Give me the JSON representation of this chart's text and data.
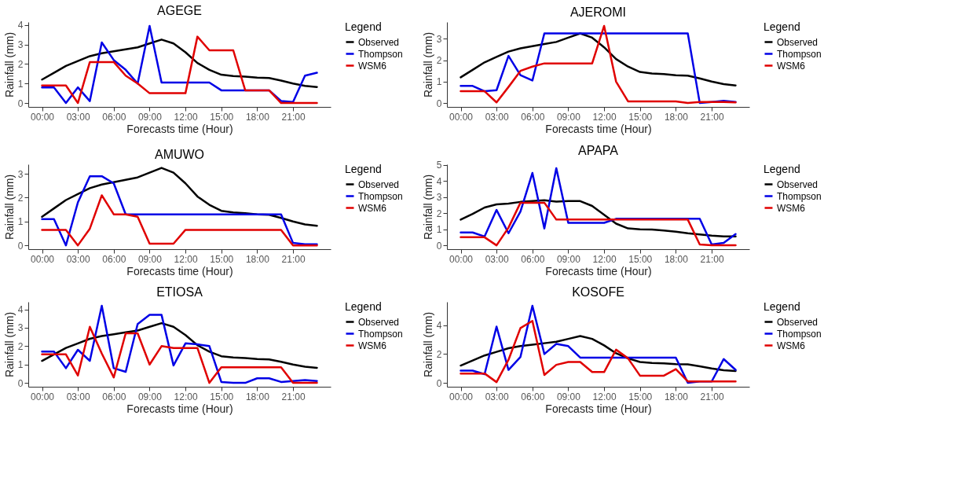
{
  "chart_data": [
    {
      "type": "line",
      "title": "AGEGE",
      "xlabel": "Forecasts time (Hour)",
      "ylabel": "Rainfall (mm)",
      "legend_title": "Legend",
      "legend": "right",
      "grid": false,
      "line_style": "solid",
      "x": [
        0,
        1,
        2,
        3,
        4,
        5,
        6,
        7,
        8,
        9,
        10,
        11,
        12,
        13,
        14,
        15,
        16,
        17,
        18,
        19,
        20,
        21,
        22,
        23
      ],
      "xlim": [
        -1.15,
        24.15
      ],
      "xticks": [
        {
          "value": 0,
          "label": "00:00"
        },
        {
          "value": 3,
          "label": "03:00"
        },
        {
          "value": 6,
          "label": "06:00"
        },
        {
          "value": 9,
          "label": "09:00"
        },
        {
          "value": 12,
          "label": "12:00"
        },
        {
          "value": 15,
          "label": "15:00"
        },
        {
          "value": 18,
          "label": "18:00"
        },
        {
          "value": 21,
          "label": "21:00"
        }
      ],
      "ylim": [
        -0.2,
        4.15
      ],
      "yticks": [
        0,
        1,
        2,
        3,
        4
      ],
      "series": [
        {
          "name": "Observed",
          "color": "#000000",
          "values": [
            1.2,
            1.55,
            1.9,
            2.15,
            2.4,
            2.55,
            2.65,
            2.75,
            2.85,
            3.05,
            3.25,
            3.05,
            2.6,
            2.05,
            1.7,
            1.45,
            1.38,
            1.35,
            1.3,
            1.28,
            1.15,
            1.0,
            0.88,
            0.82
          ]
        },
        {
          "name": "Thompson",
          "color": "#0000e6",
          "values": [
            0.8,
            0.8,
            0,
            0.8,
            0.1,
            3.1,
            2.2,
            1.7,
            1.0,
            3.95,
            1.05,
            1.05,
            1.05,
            1.05,
            1.05,
            0.65,
            0.65,
            0.65,
            0.65,
            0.65,
            0.1,
            0.05,
            1.4,
            1.55
          ]
        },
        {
          "name": "WSM6",
          "color": "#e00000",
          "values": [
            0.9,
            0.9,
            0.9,
            0,
            2.1,
            2.1,
            2.1,
            1.4,
            1.0,
            0.5,
            0.5,
            0.5,
            0.5,
            3.4,
            2.7,
            2.7,
            2.7,
            0.65,
            0.65,
            0.65,
            0,
            0,
            0,
            0
          ]
        }
      ]
    },
    {
      "type": "line",
      "title": "AJEROMI",
      "xlabel": "Forecasts time (Hour)",
      "ylabel": "Rainfall (mm)",
      "legend_title": "Legend",
      "legend": "right",
      "grid": false,
      "line_style": "solid",
      "x": [
        0,
        1,
        2,
        3,
        4,
        5,
        6,
        7,
        8,
        9,
        10,
        11,
        12,
        13,
        14,
        15,
        16,
        17,
        18,
        19,
        20,
        21,
        22,
        23
      ],
      "xlim": [
        -1.15,
        24.15
      ],
      "xticks": [
        {
          "value": 0,
          "label": "00:00"
        },
        {
          "value": 3,
          "label": "03:00"
        },
        {
          "value": 6,
          "label": "06:00"
        },
        {
          "value": 9,
          "label": "09:00"
        },
        {
          "value": 12,
          "label": "12:00"
        },
        {
          "value": 15,
          "label": "15:00"
        },
        {
          "value": 18,
          "label": "18:00"
        },
        {
          "value": 21,
          "label": "21:00"
        }
      ],
      "ylim": [
        -0.18,
        3.78
      ],
      "yticks": [
        0,
        1,
        2,
        3
      ],
      "series": [
        {
          "name": "Observed",
          "color": "#000000",
          "values": [
            1.2,
            1.55,
            1.9,
            2.15,
            2.4,
            2.55,
            2.65,
            2.75,
            2.85,
            3.05,
            3.25,
            3.05,
            2.6,
            2.05,
            1.7,
            1.45,
            1.38,
            1.35,
            1.3,
            1.28,
            1.15,
            1.0,
            0.88,
            0.82
          ]
        },
        {
          "name": "Thompson",
          "color": "#0000e6",
          "values": [
            0.8,
            0.8,
            0.55,
            0.6,
            2.2,
            1.3,
            1.05,
            3.25,
            3.25,
            3.25,
            3.25,
            3.25,
            3.25,
            3.25,
            3.25,
            3.25,
            3.25,
            3.25,
            3.25,
            3.25,
            0,
            0.05,
            0.1,
            0.05
          ]
        },
        {
          "name": "WSM6",
          "color": "#e00000",
          "values": [
            0.55,
            0.55,
            0.55,
            0.03,
            0.75,
            1.5,
            1.7,
            1.85,
            1.85,
            1.85,
            1.85,
            1.85,
            3.6,
            1.0,
            0.08,
            0.08,
            0.08,
            0.08,
            0.08,
            0,
            0.05,
            0.05,
            0.05,
            0.03
          ]
        }
      ]
    },
    {
      "type": "line",
      "title": "AMUWO",
      "xlabel": "Forecasts time (Hour)",
      "ylabel": "Rainfall (mm)",
      "legend_title": "Legend",
      "legend": "right",
      "grid": false,
      "line_style": "solid",
      "x": [
        0,
        1,
        2,
        3,
        4,
        5,
        6,
        7,
        8,
        9,
        10,
        11,
        12,
        13,
        14,
        15,
        16,
        17,
        18,
        19,
        20,
        21,
        22,
        23
      ],
      "xlim": [
        -1.15,
        24.15
      ],
      "xticks": [
        {
          "value": 0,
          "label": "00:00"
        },
        {
          "value": 3,
          "label": "03:00"
        },
        {
          "value": 6,
          "label": "06:00"
        },
        {
          "value": 9,
          "label": "09:00"
        },
        {
          "value": 12,
          "label": "12:00"
        },
        {
          "value": 15,
          "label": "15:00"
        },
        {
          "value": 18,
          "label": "18:00"
        },
        {
          "value": 21,
          "label": "21:00"
        }
      ],
      "ylim": [
        -0.16,
        3.4
      ],
      "yticks": [
        0,
        1,
        2,
        3
      ],
      "series": [
        {
          "name": "Observed",
          "color": "#000000",
          "values": [
            1.2,
            1.55,
            1.9,
            2.15,
            2.4,
            2.55,
            2.65,
            2.75,
            2.85,
            3.05,
            3.25,
            3.05,
            2.6,
            2.05,
            1.7,
            1.45,
            1.38,
            1.35,
            1.3,
            1.28,
            1.15,
            1.0,
            0.88,
            0.82
          ]
        },
        {
          "name": "Thompson",
          "color": "#0000e6",
          "values": [
            1.1,
            1.1,
            0,
            1.8,
            2.9,
            2.9,
            2.6,
            1.3,
            1.3,
            1.3,
            1.3,
            1.3,
            1.3,
            1.3,
            1.3,
            1.3,
            1.3,
            1.3,
            1.3,
            1.3,
            1.3,
            0.1,
            0.05,
            0.05
          ]
        },
        {
          "name": "WSM6",
          "color": "#e00000",
          "values": [
            0.65,
            0.65,
            0.65,
            0,
            0.7,
            2.1,
            1.3,
            1.3,
            1.2,
            0.07,
            0.07,
            0.07,
            0.65,
            0.65,
            0.65,
            0.65,
            0.65,
            0.65,
            0.65,
            0.65,
            0.65,
            0,
            0,
            0
          ]
        }
      ]
    },
    {
      "type": "line",
      "title": "APAPA",
      "xlabel": "Forecasts time (Hour)",
      "ylabel": "Rainfall (mm)",
      "legend_title": "Legend",
      "legend": "right",
      "grid": false,
      "line_style": "solid",
      "x": [
        0,
        1,
        2,
        3,
        4,
        5,
        6,
        7,
        8,
        9,
        10,
        11,
        12,
        13,
        14,
        15,
        16,
        17,
        18,
        19,
        20,
        21,
        22,
        23
      ],
      "xlim": [
        -1.15,
        24.15
      ],
      "xticks": [
        {
          "value": 0,
          "label": "00:00"
        },
        {
          "value": 3,
          "label": "03:00"
        },
        {
          "value": 6,
          "label": "06:00"
        },
        {
          "value": 9,
          "label": "09:00"
        },
        {
          "value": 12,
          "label": "12:00"
        },
        {
          "value": 15,
          "label": "15:00"
        },
        {
          "value": 18,
          "label": "18:00"
        },
        {
          "value": 21,
          "label": "21:00"
        }
      ],
      "ylim": [
        -0.24,
        5.04
      ],
      "yticks": [
        0,
        1,
        2,
        3,
        4,
        5
      ],
      "series": [
        {
          "name": "Observed",
          "color": "#000000",
          "values": [
            1.6,
            1.95,
            2.35,
            2.55,
            2.6,
            2.7,
            2.75,
            2.8,
            2.72,
            2.75,
            2.75,
            2.45,
            1.9,
            1.35,
            1.05,
            1.0,
            0.98,
            0.92,
            0.85,
            0.75,
            0.68,
            0.6,
            0.55,
            0.55
          ]
        },
        {
          "name": "Thompson",
          "color": "#0000e6",
          "values": [
            0.8,
            0.8,
            0.55,
            2.2,
            0.75,
            2.1,
            4.5,
            1.05,
            4.8,
            1.4,
            1.4,
            1.4,
            1.4,
            1.65,
            1.65,
            1.65,
            1.65,
            1.65,
            1.65,
            1.65,
            1.65,
            0.05,
            0.15,
            0.7
          ]
        },
        {
          "name": "WSM6",
          "color": "#e00000",
          "values": [
            0.5,
            0.5,
            0.5,
            0,
            1.1,
            2.65,
            2.65,
            2.65,
            1.6,
            1.6,
            1.6,
            1.6,
            1.6,
            1.6,
            1.6,
            1.6,
            1.6,
            1.6,
            1.6,
            1.6,
            0.05,
            0,
            0,
            0
          ]
        }
      ]
    },
    {
      "type": "line",
      "title": "ETIOSA",
      "xlabel": "Forecasts time (Hour)",
      "ylabel": "Rainfall (mm)",
      "legend_title": "Legend",
      "legend": "right",
      "grid": false,
      "line_style": "solid",
      "x": [
        0,
        1,
        2,
        3,
        4,
        5,
        6,
        7,
        8,
        9,
        10,
        11,
        12,
        13,
        14,
        15,
        16,
        17,
        18,
        19,
        20,
        21,
        22,
        23
      ],
      "xlim": [
        -1.15,
        24.15
      ],
      "xticks": [
        {
          "value": 0,
          "label": "00:00"
        },
        {
          "value": 3,
          "label": "03:00"
        },
        {
          "value": 6,
          "label": "06:00"
        },
        {
          "value": 9,
          "label": "09:00"
        },
        {
          "value": 12,
          "label": "12:00"
        },
        {
          "value": 15,
          "label": "15:00"
        },
        {
          "value": 18,
          "label": "18:00"
        },
        {
          "value": 21,
          "label": "21:00"
        }
      ],
      "ylim": [
        -0.21,
        4.41
      ],
      "yticks": [
        0,
        1,
        2,
        3,
        4
      ],
      "series": [
        {
          "name": "Observed",
          "color": "#000000",
          "values": [
            1.2,
            1.55,
            1.9,
            2.15,
            2.4,
            2.55,
            2.65,
            2.75,
            2.85,
            3.05,
            3.25,
            3.05,
            2.6,
            2.05,
            1.7,
            1.45,
            1.38,
            1.35,
            1.3,
            1.28,
            1.15,
            1.0,
            0.88,
            0.82
          ]
        },
        {
          "name": "Thompson",
          "color": "#0000e6",
          "values": [
            1.7,
            1.7,
            0.8,
            1.8,
            1.2,
            4.2,
            0.8,
            0.6,
            3.2,
            3.7,
            3.7,
            0.95,
            2.15,
            2.1,
            2.0,
            0.05,
            0,
            0,
            0.25,
            0.25,
            0.05,
            0.1,
            0.15,
            0.1
          ]
        },
        {
          "name": "WSM6",
          "color": "#e00000",
          "values": [
            1.55,
            1.55,
            1.55,
            0.4,
            3.05,
            1.6,
            0.3,
            2.7,
            2.7,
            1.0,
            2.0,
            1.9,
            1.9,
            1.9,
            0,
            0.85,
            0.85,
            0.85,
            0.85,
            0.85,
            0.85,
            0,
            0,
            0
          ]
        }
      ]
    },
    {
      "type": "line",
      "title": "KOSOFE",
      "xlabel": "Forecasts time (Hour)",
      "ylabel": "Rainfall (mm)",
      "legend_title": "Legend",
      "legend": "right",
      "grid": false,
      "line_style": "solid",
      "x": [
        0,
        1,
        2,
        3,
        4,
        5,
        6,
        7,
        8,
        9,
        10,
        11,
        12,
        13,
        14,
        15,
        16,
        17,
        18,
        19,
        20,
        21,
        22,
        23
      ],
      "xlim": [
        -1.15,
        24.15
      ],
      "xticks": [
        {
          "value": 0,
          "label": "00:00"
        },
        {
          "value": 3,
          "label": "03:00"
        },
        {
          "value": 6,
          "label": "06:00"
        },
        {
          "value": 9,
          "label": "09:00"
        },
        {
          "value": 12,
          "label": "12:00"
        },
        {
          "value": 15,
          "label": "15:00"
        },
        {
          "value": 18,
          "label": "18:00"
        },
        {
          "value": 21,
          "label": "21:00"
        }
      ],
      "ylim": [
        -0.27,
        5.62
      ],
      "yticks": [
        0,
        2,
        4
      ],
      "series": [
        {
          "name": "Observed",
          "color": "#000000",
          "values": [
            1.2,
            1.55,
            1.9,
            2.15,
            2.4,
            2.55,
            2.65,
            2.75,
            2.85,
            3.05,
            3.25,
            3.05,
            2.6,
            2.05,
            1.7,
            1.45,
            1.38,
            1.35,
            1.3,
            1.28,
            1.15,
            1.0,
            0.88,
            0.82
          ]
        },
        {
          "name": "Thompson",
          "color": "#0000e6",
          "values": [
            0.85,
            0.85,
            0.6,
            3.9,
            0.9,
            1.8,
            5.35,
            2.0,
            2.7,
            2.55,
            1.75,
            1.75,
            1.75,
            1.75,
            1.75,
            1.75,
            1.75,
            1.75,
            1.75,
            0,
            0.1,
            0.1,
            1.65,
            0.9
          ]
        },
        {
          "name": "WSM6",
          "color": "#e00000",
          "values": [
            0.65,
            0.65,
            0.65,
            0.05,
            1.6,
            3.8,
            4.3,
            0.55,
            1.25,
            1.45,
            1.45,
            0.75,
            0.75,
            2.3,
            1.7,
            0.5,
            0.5,
            0.5,
            0.95,
            0.1,
            0.1,
            0.1,
            0.1,
            0.1
          ]
        }
      ]
    }
  ]
}
